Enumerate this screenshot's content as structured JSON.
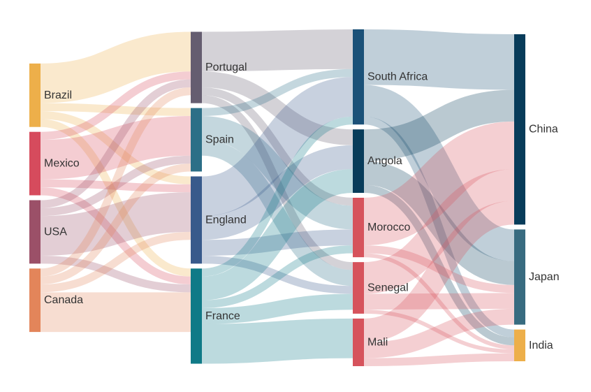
{
  "chart_data": {
    "type": "sankey",
    "node_order_by_column": [
      [
        "Brazil",
        "Mexico",
        "USA",
        "Canada"
      ],
      [
        "Portugal",
        "Spain",
        "England",
        "France"
      ],
      [
        "South Africa",
        "Angola",
        "Morocco",
        "Senegal",
        "Mali"
      ],
      [
        "China",
        "Japan",
        "India"
      ]
    ],
    "nodes": [
      {
        "name": "Brazil",
        "color": "#edaf4a"
      },
      {
        "name": "Mexico",
        "color": "#d64b5d"
      },
      {
        "name": "USA",
        "color": "#9b5068"
      },
      {
        "name": "Canada",
        "color": "#e3855a"
      },
      {
        "name": "Portugal",
        "color": "#655d70"
      },
      {
        "name": "Spain",
        "color": "#2c6f87"
      },
      {
        "name": "England",
        "color": "#385a8b"
      },
      {
        "name": "France",
        "color": "#0f7a87"
      },
      {
        "name": "South Africa",
        "color": "#1b5178"
      },
      {
        "name": "Angola",
        "color": "#083c5a"
      },
      {
        "name": "Morocco",
        "color": "#d6535c"
      },
      {
        "name": "Senegal",
        "color": "#d6535c"
      },
      {
        "name": "Mali",
        "color": "#d6535c"
      },
      {
        "name": "China",
        "color": "#083c5a"
      },
      {
        "name": "Japan",
        "color": "#386b80"
      },
      {
        "name": "India",
        "color": "#edaf4a"
      }
    ],
    "links": [
      {
        "source": "Brazil",
        "target": "Portugal",
        "value": 5
      },
      {
        "source": "Brazil",
        "target": "Spain",
        "value": 1
      },
      {
        "source": "Brazil",
        "target": "England",
        "value": 1
      },
      {
        "source": "Brazil",
        "target": "France",
        "value": 1
      },
      {
        "source": "Mexico",
        "target": "Portugal",
        "value": 1
      },
      {
        "source": "Mexico",
        "target": "Spain",
        "value": 5
      },
      {
        "source": "Mexico",
        "target": "England",
        "value": 1
      },
      {
        "source": "Mexico",
        "target": "France",
        "value": 1
      },
      {
        "source": "USA",
        "target": "Portugal",
        "value": 1
      },
      {
        "source": "USA",
        "target": "Spain",
        "value": 1
      },
      {
        "source": "USA",
        "target": "England",
        "value": 5
      },
      {
        "source": "USA",
        "target": "France",
        "value": 1
      },
      {
        "source": "Canada",
        "target": "Portugal",
        "value": 1
      },
      {
        "source": "Canada",
        "target": "Spain",
        "value": 1
      },
      {
        "source": "Canada",
        "target": "England",
        "value": 1
      },
      {
        "source": "Canada",
        "target": "France",
        "value": 5
      },
      {
        "source": "Portugal",
        "target": "South Africa",
        "value": 5
      },
      {
        "source": "Portugal",
        "target": "Angola",
        "value": 2
      },
      {
        "source": "Portugal",
        "target": "Morocco",
        "value": 1
      },
      {
        "source": "Portugal",
        "target": "Senegal",
        "value": 1
      },
      {
        "source": "Spain",
        "target": "South Africa",
        "value": 1
      },
      {
        "source": "Spain",
        "target": "Morocco",
        "value": 3
      },
      {
        "source": "Spain",
        "target": "Senegal",
        "value": 2
      },
      {
        "source": "England",
        "target": "South Africa",
        "value": 5
      },
      {
        "source": "England",
        "target": "Angola",
        "value": 3
      },
      {
        "source": "England",
        "target": "Morocco",
        "value": 2
      },
      {
        "source": "England",
        "target": "Senegal",
        "value": 1
      },
      {
        "source": "France",
        "target": "South Africa",
        "value": 1
      },
      {
        "source": "France",
        "target": "Angola",
        "value": 3
      },
      {
        "source": "France",
        "target": "Morocco",
        "value": 1
      },
      {
        "source": "France",
        "target": "Senegal",
        "value": 2
      },
      {
        "source": "France",
        "target": "Mali",
        "value": 5
      },
      {
        "source": "South Africa",
        "target": "China",
        "value": 7
      },
      {
        "source": "South Africa",
        "target": "Japan",
        "value": 4
      },
      {
        "source": "South Africa",
        "target": "India",
        "value": 1
      },
      {
        "source": "Angola",
        "target": "China",
        "value": 4
      },
      {
        "source": "Angola",
        "target": "Japan",
        "value": 3
      },
      {
        "source": "Angola",
        "target": "India",
        "value": 1
      },
      {
        "source": "Morocco",
        "target": "China",
        "value": 6
      },
      {
        "source": "Morocco",
        "target": "Japan",
        "value": 1
      },
      {
        "source": "Morocco",
        "target": "India",
        "value": 0.5
      },
      {
        "source": "Senegal",
        "target": "China",
        "value": 4
      },
      {
        "source": "Senegal",
        "target": "Japan",
        "value": 2
      },
      {
        "source": "Senegal",
        "target": "India",
        "value": 0.5
      },
      {
        "source": "Mali",
        "target": "China",
        "value": 3
      },
      {
        "source": "Mali",
        "target": "Japan",
        "value": 2
      },
      {
        "source": "Mali",
        "target": "India",
        "value": 1
      }
    ],
    "title": "",
    "legend": "none"
  }
}
